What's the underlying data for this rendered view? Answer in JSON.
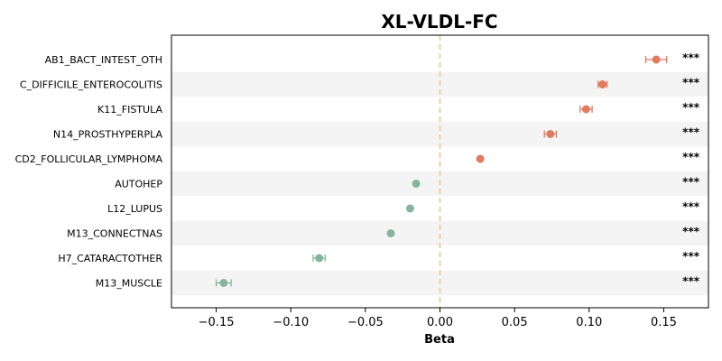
{
  "chart_data": {
    "type": "scatter",
    "title": "XL-VLDL-FC",
    "xlabel": "Beta",
    "xlim": [
      -0.18,
      0.18
    ],
    "xticks": [
      -0.15,
      -0.1,
      -0.05,
      0.0,
      0.05,
      0.1,
      0.15
    ],
    "xtick_labels": [
      "−0.15",
      "−0.10",
      "−0.05",
      "0.00",
      "0.05",
      "0.10",
      "0.15"
    ],
    "reference_line": 0.0,
    "positive_color": "#e07b5f",
    "negative_color": "#86b49c",
    "reference_line_color": "#f2c48d",
    "band_color": "#f4f4f4",
    "categories": [
      "AB1_BACT_INTEST_OTH",
      "C_DIFFICILE_ENTEROCOLITIS",
      "K11_FISTULA",
      "N14_PROSTHYPERPLA",
      "CD2_FOLLICULAR_LYMPHOMA",
      "AUTOHEP",
      "L12_LUPUS",
      "M13_CONNECTNAS",
      "H7_CATARACTOTHER",
      "M13_MUSCLE"
    ],
    "beta": [
      0.145,
      0.109,
      0.098,
      0.074,
      0.027,
      -0.016,
      -0.02,
      -0.033,
      -0.081,
      -0.145
    ],
    "ci_low": [
      0.138,
      0.106,
      0.094,
      0.07,
      0.026,
      -0.017,
      -0.021,
      -0.034,
      -0.085,
      -0.15
    ],
    "ci_high": [
      0.152,
      0.112,
      0.102,
      0.078,
      0.028,
      -0.015,
      -0.019,
      -0.032,
      -0.077,
      -0.14
    ],
    "significance": [
      "***",
      "***",
      "***",
      "***",
      "***",
      "***",
      "***",
      "***",
      "***",
      "***"
    ]
  }
}
